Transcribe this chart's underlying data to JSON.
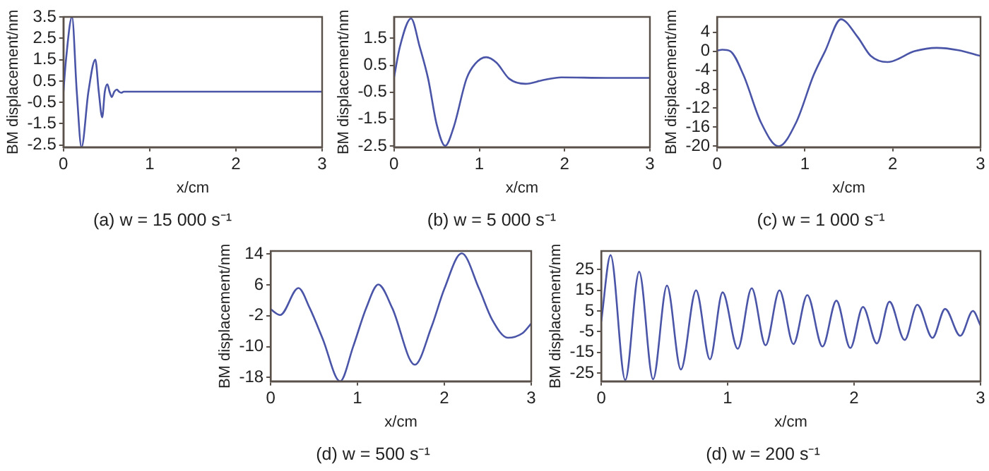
{
  "chart_data": [
    {
      "type": "line",
      "title": "(a) w = 15 000 s⁻¹",
      "xlabel": "x/cm",
      "ylabel": "BM displacement/nm",
      "xlim": [
        0,
        3
      ],
      "xticks": [
        0,
        1,
        2,
        3
      ],
      "ylim": [
        -2.6,
        3.5
      ],
      "yticks": [
        3.5,
        2.5,
        1.5,
        0.5,
        -0.5,
        -1.5,
        -2.5
      ],
      "color": "#4a55a8",
      "x": [
        0,
        0.03,
        0.1,
        0.155,
        0.21,
        0.29,
        0.37,
        0.41,
        0.45,
        0.48,
        0.51,
        0.535,
        0.56,
        0.59,
        0.62,
        0.645,
        0.67,
        0.7,
        3
      ],
      "values": [
        0,
        1.5,
        3.5,
        0,
        -2.6,
        0,
        1.5,
        0,
        -1.2,
        0,
        0.35,
        0,
        -0.25,
        0,
        0.1,
        0,
        -0.05,
        0,
        0
      ]
    },
    {
      "type": "line",
      "title": "(b) w = 5 000 s⁻¹",
      "xlabel": "x/cm",
      "ylabel": "BM displacement/nm",
      "xlim": [
        0,
        3
      ],
      "xticks": [
        0,
        1,
        2,
        3
      ],
      "ylim": [
        -2.55,
        2.3
      ],
      "yticks": [
        1.5,
        0.5,
        -0.5,
        -1.5,
        -2.5
      ],
      "color": "#4a55a8",
      "x": [
        0,
        0.07,
        0.2,
        0.3,
        0.4,
        0.5,
        0.6,
        0.7,
        0.85,
        0.95,
        1.08,
        1.2,
        1.35,
        1.54,
        1.75,
        1.96,
        2.5,
        3
      ],
      "values": [
        0.05,
        1.2,
        2.24,
        1.2,
        0,
        -1.7,
        -2.5,
        -1.8,
        0,
        0.55,
        0.8,
        0.6,
        0,
        -0.19,
        -0.05,
        0.05,
        0.03,
        0.03
      ]
    },
    {
      "type": "line",
      "title": "(c) w = 1 000 s⁻¹",
      "xlabel": "x/cm",
      "ylabel": "BM displacement/nm",
      "xlim": [
        0,
        3
      ],
      "xticks": [
        0,
        1,
        2,
        3
      ],
      "ylim": [
        -20.2,
        7.2
      ],
      "yticks": [
        4,
        0,
        -4,
        -8,
        -12,
        -16,
        -20
      ],
      "color": "#4a55a8",
      "x": [
        0,
        0.06,
        0.15,
        0.3,
        0.5,
        0.7,
        0.9,
        1.1,
        1.23,
        1.41,
        1.6,
        1.75,
        1.94,
        2.25,
        2.5,
        2.75,
        3
      ],
      "values": [
        0.1,
        0.3,
        0,
        -5,
        -15,
        -20,
        -15,
        -5,
        0,
        6.7,
        3,
        -1,
        -2.3,
        0,
        0.7,
        0.2,
        -1
      ]
    },
    {
      "type": "line",
      "title": "(d) w = 500 s⁻¹",
      "xlabel": "x/cm",
      "ylabel": "BM displacement/nm",
      "xlim": [
        0,
        3
      ],
      "xticks": [
        0,
        1,
        2,
        3
      ],
      "ylim": [
        -19,
        14.8
      ],
      "yticks": [
        14,
        6,
        -2,
        -10,
        -18
      ],
      "color": "#4a55a8",
      "x": [
        0,
        0.11,
        0.32,
        0.45,
        0.6,
        0.8,
        0.95,
        1.1,
        1.24,
        1.4,
        1.66,
        1.85,
        2.0,
        2.2,
        2.4,
        2.55,
        2.73,
        2.9,
        3
      ],
      "values": [
        -0.3,
        -1.8,
        5.2,
        0,
        -8,
        -19,
        -10,
        0,
        6.1,
        0,
        -14.7,
        -5,
        5,
        14.2,
        5,
        -3,
        -7.7,
        -6.5,
        -4
      ]
    },
    {
      "type": "line",
      "title": "(d) w = 200 s⁻¹",
      "xlabel": "x/cm",
      "ylabel": "BM displacement/nm",
      "xlim": [
        0,
        3
      ],
      "xticks": [
        0,
        1,
        2,
        3
      ],
      "ylim": [
        -29,
        34
      ],
      "yticks": [
        25,
        15,
        5,
        -5,
        -15,
        -25
      ],
      "color": "#4a55a8",
      "x": [
        0,
        0.074,
        0.19,
        0.3,
        0.41,
        0.52,
        0.63,
        0.75,
        0.86,
        0.96,
        1.08,
        1.19,
        1.3,
        1.41,
        1.52,
        1.63,
        1.75,
        1.86,
        1.97,
        2.07,
        2.18,
        2.28,
        2.4,
        2.5,
        2.62,
        2.72,
        2.84,
        2.94,
        3
      ],
      "values": [
        0,
        32,
        -28.4,
        24,
        -28,
        17.3,
        -23.3,
        15,
        -18.4,
        14,
        -13.3,
        16,
        -11.6,
        15,
        -11,
        12.7,
        -12.2,
        10,
        -12.9,
        7,
        -10.7,
        9.5,
        -9,
        8,
        -8,
        6,
        -7,
        5,
        -2
      ]
    }
  ]
}
